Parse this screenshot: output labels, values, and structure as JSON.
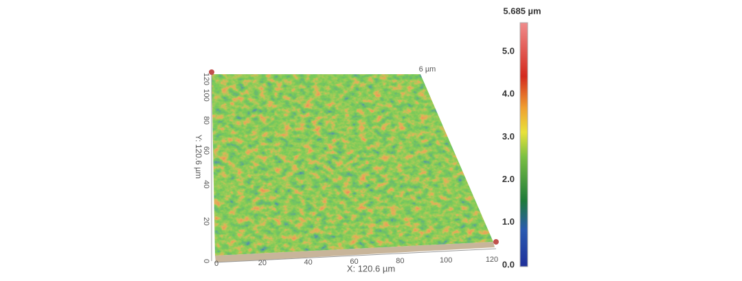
{
  "surface": {
    "z_label": "6 µm"
  },
  "x_axis": {
    "label": "X: 120.6 µm",
    "ticks": [
      0,
      20,
      40,
      60,
      80,
      100,
      120
    ]
  },
  "y_axis": {
    "label": "Y: 120.6 µm",
    "ticks": [
      0,
      20,
      40,
      60,
      80,
      100,
      120
    ]
  },
  "colorbar": {
    "title": "5.685 µm",
    "ticks": [
      "0.0",
      "1.0",
      "2.0",
      "3.0",
      "4.0",
      "5.0"
    ]
  }
}
